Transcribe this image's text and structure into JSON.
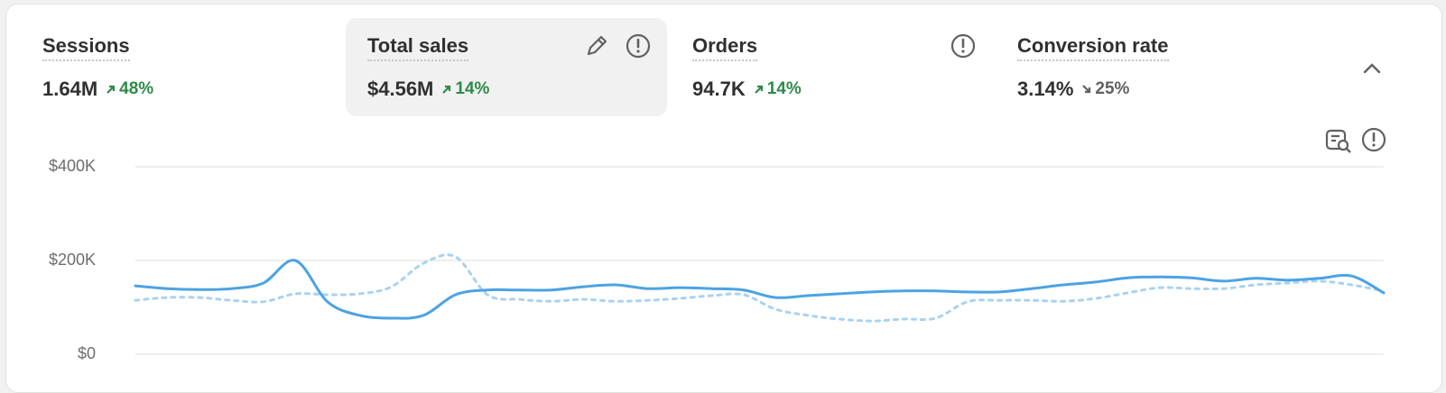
{
  "metrics": [
    {
      "title": "Sessions",
      "value": "1.64M",
      "change": "48%",
      "trend": "up"
    },
    {
      "title": "Total sales",
      "value": "$4.56M",
      "change": "14%",
      "trend": "up"
    },
    {
      "title": "Orders",
      "value": "94.7K",
      "change": "14%",
      "trend": "up"
    },
    {
      "title": "Conversion rate",
      "value": "3.14%",
      "change": "25%",
      "trend": "down"
    }
  ],
  "chart_data": {
    "type": "line",
    "ylim": [
      0,
      400000
    ],
    "yticks": [
      {
        "value": 0,
        "label": "$0"
      },
      {
        "value": 200000,
        "label": "$200K"
      },
      {
        "value": 400000,
        "label": "$400K"
      }
    ],
    "grid": true,
    "series": [
      {
        "color": "#4ba3e3",
        "style": "solid",
        "values": [
          146000,
          140000,
          138000,
          140000,
          152000,
          200000,
          112000,
          83000,
          77000,
          83000,
          127000,
          137000,
          137000,
          137000,
          144000,
          148000,
          140000,
          142000,
          140000,
          137000,
          121000,
          125000,
          129000,
          133000,
          135000,
          135000,
          133000,
          133000,
          140000,
          148000,
          154000,
          163000,
          165000,
          163000,
          156000,
          162000,
          158000,
          162000,
          167000,
          131000
        ]
      },
      {
        "color": "#a9d2f1",
        "style": "dashed",
        "values": [
          115000,
          121000,
          121000,
          115000,
          112000,
          129000,
          127000,
          129000,
          144000,
          194000,
          208000,
          127000,
          117000,
          113000,
          117000,
          113000,
          115000,
          119000,
          125000,
          127000,
          96000,
          83000,
          75000,
          71000,
          75000,
          77000,
          112000,
          115000,
          115000,
          113000,
          119000,
          131000,
          142000,
          140000,
          140000,
          148000,
          152000,
          156000,
          148000,
          135000
        ]
      }
    ]
  }
}
